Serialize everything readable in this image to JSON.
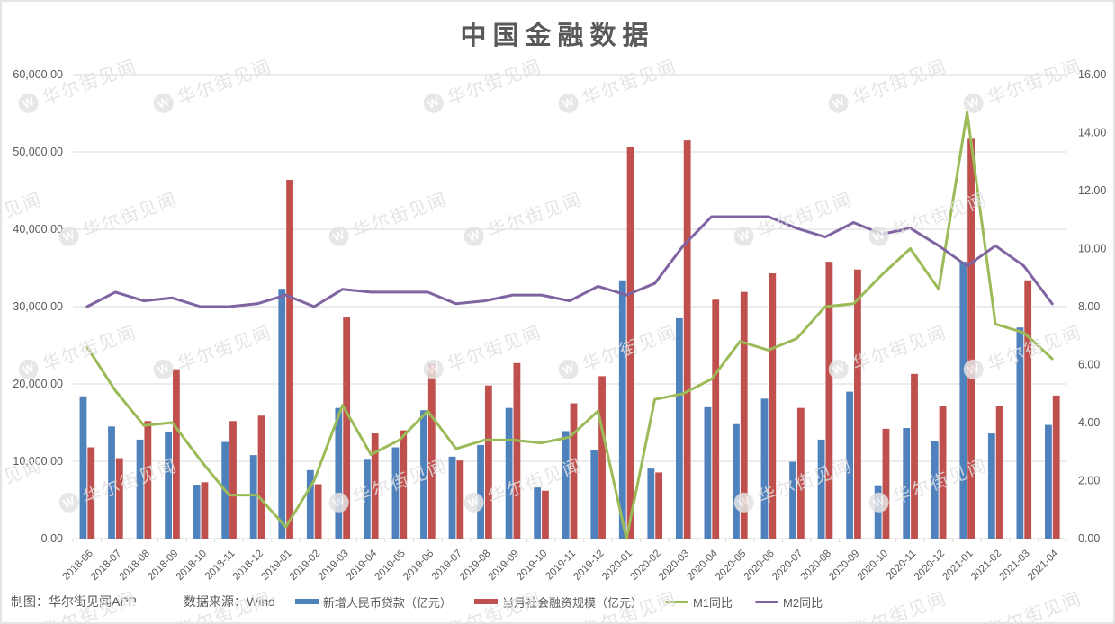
{
  "watermark": {
    "logo": "W",
    "text": "华尔街见闻"
  },
  "footer": {
    "credit": "制图：华尔街见闻APP",
    "source": "数据来源：Wind"
  },
  "colors": {
    "loans_bar": "#4f81bd",
    "tsf_bar": "#c0504d",
    "m1_line": "#9bbb59",
    "m2_line": "#8064a2",
    "grid": "#d9d9d9",
    "axis_text": "#595959",
    "title_text": "#595959",
    "frame_border": "#e4e4e4",
    "watermark": "#e0e0e0"
  },
  "chart_data": {
    "type": "bar",
    "subtype": "combo bar+line, dual axis",
    "title": "中国金融数据",
    "xlabel": "",
    "ylabel_left": "",
    "ylabel_right": "",
    "grid": true,
    "legend_position": "bottom",
    "left_axis": {
      "min": 0,
      "max": 60000,
      "step": 10000,
      "ticks": [
        "0.00",
        "10,000.00",
        "20,000.00",
        "30,000.00",
        "40,000.00",
        "50,000.00",
        "60,000.00"
      ]
    },
    "right_axis": {
      "min": 0,
      "max": 16,
      "step": 2,
      "ticks": [
        "0.00",
        "2.00",
        "4.00",
        "6.00",
        "8.00",
        "10.00",
        "12.00",
        "14.00",
        "16.00"
      ]
    },
    "categories": [
      "2018-06",
      "2018-07",
      "2018-08",
      "2018-09",
      "2018-10",
      "2018-11",
      "2018-12",
      "2019-01",
      "2019-02",
      "2019-03",
      "2019-04",
      "2019-05",
      "2019-06",
      "2019-07",
      "2019-08",
      "2019-09",
      "2019-10",
      "2019-11",
      "2019-12",
      "2020-01",
      "2020-02",
      "2020-03",
      "2020-04",
      "2020-05",
      "2020-06",
      "2020-07",
      "2020-08",
      "2020-09",
      "2020-10",
      "2020-11",
      "2020-12",
      "2021-01",
      "2021-02",
      "2021-03",
      "2021-04"
    ],
    "series": [
      {
        "name": "新增人民币贷款（亿元）",
        "type": "bar",
        "axis": "left",
        "color": "#4f81bd",
        "values": [
          18400,
          14500,
          12800,
          13800,
          6970,
          12500,
          10800,
          32300,
          8858,
          16900,
          10200,
          11800,
          16600,
          10600,
          12100,
          16900,
          6613,
          13900,
          11400,
          33400,
          9057,
          28500,
          17000,
          14800,
          18100,
          9927,
          12800,
          19000,
          6898,
          14300,
          12600,
          35800,
          13600,
          27300,
          14700
        ]
      },
      {
        "name": "当月社会融资规模（亿元）",
        "type": "bar",
        "axis": "left",
        "color": "#c0504d",
        "values": [
          11800,
          10400,
          15200,
          21900,
          7288,
          15200,
          15900,
          46400,
          7030,
          28600,
          13600,
          14000,
          22600,
          10100,
          19800,
          22700,
          6189,
          17500,
          21000,
          50700,
          8554,
          51500,
          30900,
          31900,
          34300,
          16900,
          35800,
          34800,
          14200,
          21300,
          17200,
          51700,
          17100,
          33400,
          18500
        ]
      },
      {
        "name": "M1同比",
        "type": "line",
        "axis": "right",
        "color": "#9bbb59",
        "values": [
          6.6,
          5.1,
          3.9,
          4.0,
          2.7,
          1.5,
          1.5,
          0.4,
          2.0,
          4.6,
          2.9,
          3.4,
          4.4,
          3.1,
          3.4,
          3.4,
          3.3,
          3.5,
          4.4,
          0.0,
          4.8,
          5.0,
          5.5,
          6.8,
          6.5,
          6.9,
          8.0,
          8.1,
          9.1,
          10.0,
          8.6,
          14.7,
          7.4,
          7.1,
          6.2
        ]
      },
      {
        "name": "M2同比",
        "type": "line",
        "axis": "right",
        "color": "#8064a2",
        "values": [
          8.0,
          8.5,
          8.2,
          8.3,
          8.0,
          8.0,
          8.1,
          8.4,
          8.0,
          8.6,
          8.5,
          8.5,
          8.5,
          8.1,
          8.2,
          8.4,
          8.4,
          8.2,
          8.7,
          8.4,
          8.8,
          10.1,
          11.1,
          11.1,
          11.1,
          10.7,
          10.4,
          10.9,
          10.5,
          10.7,
          10.1,
          9.4,
          10.1,
          9.4,
          8.1
        ]
      }
    ]
  }
}
